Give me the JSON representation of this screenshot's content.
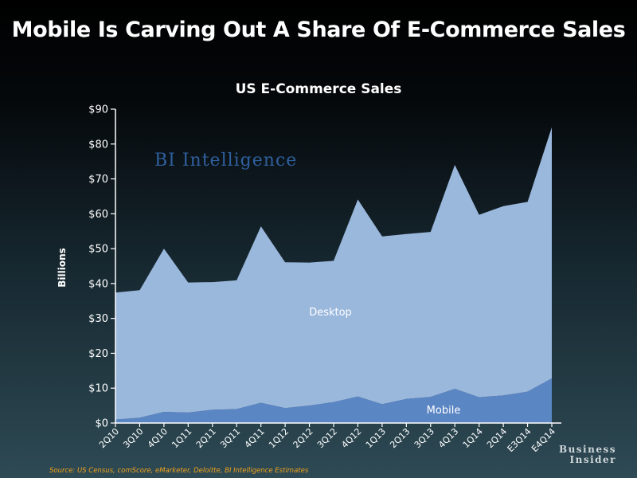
{
  "page": {
    "title": "Mobile Is Carving Out A Share Of E-Commerce Sales",
    "source": "Source: US Census, comScore, eMarketer, Deloitte, BI Intelligence Estimates",
    "logo_line1": "Business",
    "logo_line2": "Insider",
    "watermark": "BI Intelligence"
  },
  "colors": {
    "desktop": "#9ab7dc",
    "mobile": "#5b86c4",
    "axis": "#ffffff",
    "source": "#f2a31b",
    "watermark": "#2f5f9e"
  },
  "chart_data": {
    "type": "area",
    "stacked": true,
    "title": "US E-Commerce Sales",
    "xlabel": "",
    "ylabel": "Billions",
    "ylim": [
      0,
      90
    ],
    "y_ticks": [
      0,
      10,
      20,
      30,
      40,
      50,
      60,
      70,
      80,
      90
    ],
    "y_tick_labels": [
      "$0",
      "$10",
      "$20",
      "$30",
      "$40",
      "$50",
      "$60",
      "$70",
      "$80",
      "$90"
    ],
    "grid": false,
    "legend": "none",
    "categories": [
      "2Q10",
      "3Q10",
      "4Q10",
      "1Q11",
      "2Q11",
      "3Q11",
      "4Q11",
      "1Q12",
      "2Q12",
      "3Q12",
      "4Q12",
      "1Q13",
      "2Q13",
      "3Q13",
      "4Q13",
      "1Q14",
      "2Q14",
      "E3Q14",
      "E4Q14"
    ],
    "series": [
      {
        "name": "Mobile",
        "values": [
          1.0,
          1.5,
          3.2,
          3.0,
          3.8,
          4.0,
          5.8,
          4.3,
          5.0,
          6.0,
          7.6,
          5.4,
          6.9,
          7.5,
          9.8,
          7.4,
          7.9,
          9.0,
          12.8
        ]
      },
      {
        "name": "Desktop",
        "values": [
          36.4,
          36.6,
          46.8,
          37.3,
          36.6,
          36.9,
          50.6,
          41.8,
          41.0,
          40.5,
          56.5,
          48.1,
          47.3,
          47.3,
          64.2,
          52.3,
          54.3,
          54.4,
          72.0
        ]
      }
    ],
    "series_labels": [
      "Desktop",
      "Mobile"
    ]
  }
}
